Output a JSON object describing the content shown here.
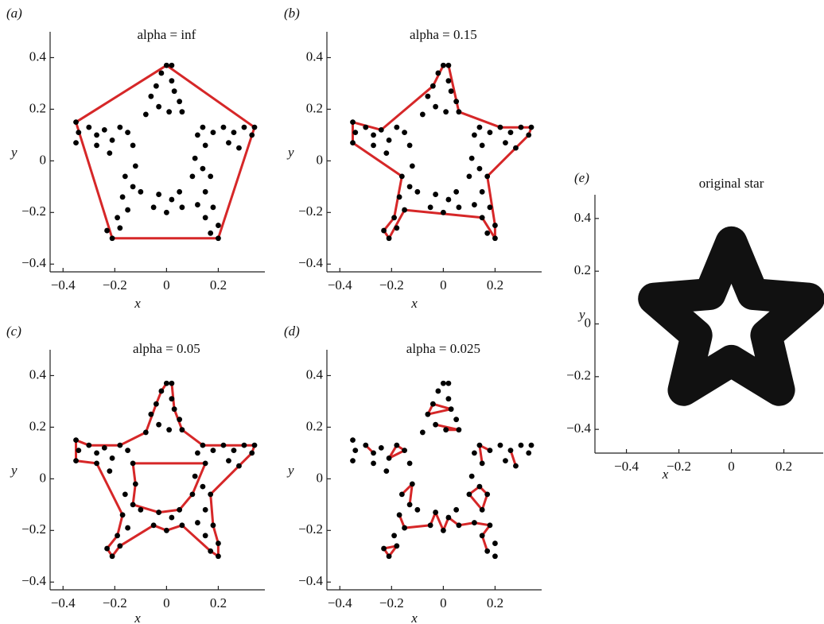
{
  "chart_data": [
    {
      "type": "scatter",
      "panel_label": "(a)",
      "title": "alpha = inf",
      "xlabel": "x",
      "ylabel": "y",
      "xlim": [
        -0.45,
        0.38
      ],
      "ylim": [
        -0.43,
        0.5
      ],
      "xticks": [
        {
          "value": -0.4,
          "label": "−0.4"
        },
        {
          "value": -0.2,
          "label": "−0.2"
        },
        0,
        0.2
      ],
      "yticks": [
        {
          "value": -0.4,
          "label": "−0.4"
        },
        {
          "value": -0.2,
          "label": "−0.2"
        },
        0,
        0.2,
        0.4
      ],
      "points": {
        "color": "#000000",
        "x": [
          0,
          0.02,
          -0.02,
          0.02,
          -0.04,
          0.03,
          -0.06,
          0.05,
          -0.03,
          0.06,
          -0.08,
          0.01,
          0.34,
          0.33,
          0.3,
          0.26,
          0.22,
          0.18,
          0.14,
          0.12,
          0.24,
          0.28,
          0.15,
          0.2,
          0.17,
          0.2,
          0.15,
          0.18,
          0.12,
          0.15,
          0.1,
          0.14,
          0.11,
          0.17,
          0.06,
          0,
          -0.05,
          0.02,
          -0.03,
          0.05,
          -0.21,
          -0.23,
          -0.18,
          -0.19,
          -0.15,
          -0.17,
          -0.13,
          -0.16,
          -0.12,
          -0.1,
          -0.35,
          -0.34,
          -0.35,
          -0.3,
          -0.27,
          -0.24,
          -0.21,
          -0.18,
          -0.15,
          -0.22,
          -0.27,
          -0.13
        ],
        "y": [
          0.37,
          0.37,
          0.34,
          0.31,
          0.29,
          0.27,
          0.25,
          0.23,
          0.21,
          0.19,
          0.18,
          0.19,
          0.13,
          0.1,
          0.13,
          0.11,
          0.13,
          0.11,
          0.13,
          0.1,
          0.07,
          0.05,
          0.06,
          -0.3,
          -0.28,
          -0.25,
          -0.22,
          -0.18,
          -0.17,
          -0.12,
          -0.06,
          -0.03,
          0.01,
          -0.06,
          -0.18,
          -0.2,
          -0.18,
          -0.15,
          -0.13,
          -0.12,
          -0.3,
          -0.27,
          -0.26,
          -0.22,
          -0.19,
          -0.14,
          -0.1,
          -0.06,
          -0.02,
          -0.12,
          0.15,
          0.11,
          0.07,
          0.13,
          0.1,
          0.12,
          0.08,
          0.13,
          0.11,
          0.03,
          0.06,
          0.06
        ]
      },
      "outline": {
        "color": "#d62728",
        "x": [
          0,
          0.34,
          0.2,
          -0.21,
          -0.35,
          0
        ],
        "y": [
          0.37,
          0.13,
          -0.3,
          -0.3,
          0.15,
          0.37
        ]
      }
    },
    {
      "type": "scatter",
      "panel_label": "(b)",
      "title": "alpha = 0.15",
      "xlabel": "x",
      "ylabel": "y",
      "xlim": [
        -0.45,
        0.38
      ],
      "ylim": [
        -0.43,
        0.5
      ],
      "xticks": [
        {
          "value": -0.4,
          "label": "−0.4"
        },
        {
          "value": -0.2,
          "label": "−0.2"
        },
        0,
        0.2
      ],
      "yticks": [
        {
          "value": -0.4,
          "label": "−0.4"
        },
        {
          "value": -0.2,
          "label": "−0.2"
        },
        0,
        0.2,
        0.4
      ],
      "points": {
        "color": "#000000",
        "x": [
          0,
          0.02,
          -0.02,
          0.02,
          -0.04,
          0.03,
          -0.06,
          0.05,
          -0.03,
          0.06,
          -0.08,
          0.01,
          0.34,
          0.33,
          0.3,
          0.26,
          0.22,
          0.18,
          0.14,
          0.12,
          0.24,
          0.28,
          0.15,
          0.2,
          0.17,
          0.2,
          0.15,
          0.18,
          0.12,
          0.15,
          0.1,
          0.14,
          0.11,
          0.17,
          0.06,
          0,
          -0.05,
          0.02,
          -0.03,
          0.05,
          -0.21,
          -0.23,
          -0.18,
          -0.19,
          -0.15,
          -0.17,
          -0.13,
          -0.16,
          -0.12,
          -0.1,
          -0.35,
          -0.34,
          -0.35,
          -0.3,
          -0.27,
          -0.24,
          -0.21,
          -0.18,
          -0.15,
          -0.22,
          -0.27,
          -0.13
        ],
        "y": [
          0.37,
          0.37,
          0.34,
          0.31,
          0.29,
          0.27,
          0.25,
          0.23,
          0.21,
          0.19,
          0.18,
          0.19,
          0.13,
          0.1,
          0.13,
          0.11,
          0.13,
          0.11,
          0.13,
          0.1,
          0.07,
          0.05,
          0.06,
          -0.3,
          -0.28,
          -0.25,
          -0.22,
          -0.18,
          -0.17,
          -0.12,
          -0.06,
          -0.03,
          0.01,
          -0.06,
          -0.18,
          -0.2,
          -0.18,
          -0.15,
          -0.13,
          -0.12,
          -0.3,
          -0.27,
          -0.26,
          -0.22,
          -0.19,
          -0.14,
          -0.1,
          -0.06,
          -0.02,
          -0.12,
          0.15,
          0.11,
          0.07,
          0.13,
          0.1,
          0.12,
          0.08,
          0.13,
          0.11,
          0.03,
          0.06,
          0.06
        ]
      },
      "outline": {
        "color": "#d62728",
        "x": [
          0,
          0.02,
          0.06,
          0.22,
          0.34,
          0.33,
          0.17,
          0.2,
          0.2,
          0.15,
          -0.15,
          -0.21,
          -0.23,
          -0.19,
          -0.16,
          -0.35,
          -0.35,
          -0.24,
          -0.04,
          0
        ],
        "y": [
          0.37,
          0.37,
          0.19,
          0.13,
          0.13,
          0.1,
          -0.06,
          -0.25,
          -0.3,
          -0.22,
          -0.19,
          -0.3,
          -0.27,
          -0.22,
          -0.06,
          0.07,
          0.15,
          0.12,
          0.29,
          0.37
        ]
      }
    },
    {
      "type": "scatter",
      "panel_label": "(c)",
      "title": "alpha = 0.05",
      "xlabel": "x",
      "ylabel": "y",
      "xlim": [
        -0.45,
        0.38
      ],
      "ylim": [
        -0.43,
        0.5
      ],
      "xticks": [
        {
          "value": -0.4,
          "label": "−0.4"
        },
        {
          "value": -0.2,
          "label": "−0.2"
        },
        0,
        0.2
      ],
      "yticks": [
        {
          "value": -0.4,
          "label": "−0.4"
        },
        {
          "value": -0.2,
          "label": "−0.2"
        },
        0,
        0.2,
        0.4
      ],
      "points": {
        "color": "#000000",
        "x": [
          0,
          0.02,
          -0.02,
          0.02,
          -0.04,
          0.03,
          -0.06,
          0.05,
          -0.03,
          0.06,
          -0.08,
          0.01,
          0.34,
          0.33,
          0.3,
          0.26,
          0.22,
          0.18,
          0.14,
          0.12,
          0.24,
          0.28,
          0.15,
          0.2,
          0.17,
          0.2,
          0.15,
          0.18,
          0.12,
          0.15,
          0.1,
          0.14,
          0.11,
          0.17,
          0.06,
          0,
          -0.05,
          0.02,
          -0.03,
          0.05,
          -0.21,
          -0.23,
          -0.18,
          -0.19,
          -0.15,
          -0.17,
          -0.13,
          -0.16,
          -0.12,
          -0.1,
          -0.35,
          -0.34,
          -0.35,
          -0.3,
          -0.27,
          -0.24,
          -0.21,
          -0.18,
          -0.15,
          -0.22,
          -0.27,
          -0.13
        ],
        "y": [
          0.37,
          0.37,
          0.34,
          0.31,
          0.29,
          0.27,
          0.25,
          0.23,
          0.21,
          0.19,
          0.18,
          0.19,
          0.13,
          0.1,
          0.13,
          0.11,
          0.13,
          0.11,
          0.13,
          0.1,
          0.07,
          0.05,
          0.06,
          -0.3,
          -0.28,
          -0.25,
          -0.22,
          -0.18,
          -0.17,
          -0.12,
          -0.06,
          -0.03,
          0.01,
          -0.06,
          -0.18,
          -0.2,
          -0.18,
          -0.15,
          -0.13,
          -0.12,
          -0.3,
          -0.27,
          -0.26,
          -0.22,
          -0.19,
          -0.14,
          -0.1,
          -0.06,
          -0.02,
          -0.12,
          0.15,
          0.11,
          0.07,
          0.13,
          0.1,
          0.12,
          0.08,
          0.13,
          0.11,
          0.03,
          0.06,
          0.06
        ]
      },
      "outline": {
        "color": "#d62728",
        "x": [
          0,
          0.02,
          0.03,
          0.06,
          0.14,
          0.22,
          0.3,
          0.34,
          0.33,
          0.28,
          0.17,
          0.18,
          0.2,
          0.2,
          0.17,
          0.06,
          0,
          -0.05,
          -0.18,
          -0.21,
          -0.23,
          -0.19,
          -0.17,
          -0.27,
          -0.35,
          -0.35,
          -0.3,
          -0.18,
          -0.08,
          -0.04,
          -0.02,
          0,
          null,
          -0.13,
          0.15,
          0.1,
          0.05,
          -0.03,
          -0.13,
          -0.12,
          -0.13
        ],
        "y": [
          0.37,
          0.37,
          0.27,
          0.19,
          0.13,
          0.13,
          0.13,
          0.13,
          0.1,
          0.05,
          -0.06,
          -0.18,
          -0.25,
          -0.3,
          -0.28,
          -0.18,
          -0.2,
          -0.18,
          -0.26,
          -0.3,
          -0.27,
          -0.22,
          -0.14,
          0.06,
          0.07,
          0.15,
          0.13,
          0.13,
          0.18,
          0.29,
          0.34,
          0.37,
          null,
          0.06,
          0.06,
          -0.06,
          -0.12,
          -0.13,
          -0.1,
          -0.02,
          0.06
        ]
      }
    },
    {
      "type": "scatter",
      "panel_label": "(d)",
      "title": "alpha = 0.025",
      "xlabel": "x",
      "ylabel": "y",
      "xlim": [
        -0.45,
        0.38
      ],
      "ylim": [
        -0.43,
        0.5
      ],
      "xticks": [
        {
          "value": -0.4,
          "label": "−0.4"
        },
        {
          "value": -0.2,
          "label": "−0.2"
        },
        0,
        0.2
      ],
      "yticks": [
        {
          "value": -0.4,
          "label": "−0.4"
        },
        {
          "value": -0.2,
          "label": "−0.2"
        },
        0,
        0.2,
        0.4
      ],
      "points": {
        "color": "#000000",
        "x": [
          0,
          0.02,
          -0.02,
          0.02,
          -0.04,
          0.03,
          -0.06,
          0.05,
          -0.03,
          0.06,
          -0.08,
          0.01,
          0.34,
          0.33,
          0.3,
          0.26,
          0.22,
          0.18,
          0.14,
          0.12,
          0.24,
          0.28,
          0.15,
          0.2,
          0.17,
          0.2,
          0.15,
          0.18,
          0.12,
          0.15,
          0.1,
          0.14,
          0.11,
          0.17,
          0.06,
          0,
          -0.05,
          0.02,
          -0.03,
          0.05,
          -0.21,
          -0.23,
          -0.18,
          -0.19,
          -0.15,
          -0.17,
          -0.13,
          -0.16,
          -0.12,
          -0.1,
          -0.35,
          -0.34,
          -0.35,
          -0.3,
          -0.27,
          -0.24,
          -0.21,
          -0.18,
          -0.15,
          -0.22,
          -0.27,
          -0.13
        ],
        "y": [
          0.37,
          0.37,
          0.34,
          0.31,
          0.29,
          0.27,
          0.25,
          0.23,
          0.21,
          0.19,
          0.18,
          0.19,
          0.13,
          0.1,
          0.13,
          0.11,
          0.13,
          0.11,
          0.13,
          0.1,
          0.07,
          0.05,
          0.06,
          -0.3,
          -0.28,
          -0.25,
          -0.22,
          -0.18,
          -0.17,
          -0.12,
          -0.06,
          -0.03,
          0.01,
          -0.06,
          -0.18,
          -0.2,
          -0.18,
          -0.15,
          -0.13,
          -0.12,
          -0.3,
          -0.27,
          -0.26,
          -0.22,
          -0.19,
          -0.14,
          -0.1,
          -0.06,
          -0.02,
          -0.12,
          0.15,
          0.11,
          0.07,
          0.13,
          0.1,
          0.12,
          0.08,
          0.13,
          0.11,
          0.03,
          0.06,
          0.06
        ]
      },
      "outline": {
        "color": "#d62728",
        "x": [
          -0.04,
          0.03,
          -0.06,
          -0.04,
          null,
          -0.03,
          0.06,
          0.01,
          null,
          -0.3,
          -0.27,
          null,
          -0.21,
          -0.18,
          -0.15,
          -0.21,
          null,
          0.18,
          0.14,
          0.15,
          null,
          0.26,
          0.28,
          null,
          0.1,
          0.14,
          0.17,
          0.15,
          0.1,
          null,
          -0.16,
          -0.12,
          -0.13,
          null,
          -0.17,
          -0.15,
          -0.05,
          -0.03,
          0,
          0.02,
          0.06,
          0.12,
          0.18,
          0.15,
          0.17,
          null,
          -0.23,
          -0.21,
          -0.18,
          -0.23
        ],
        "y": [
          0.29,
          0.27,
          0.25,
          0.29,
          null,
          0.21,
          0.19,
          0.19,
          null,
          0.13,
          0.1,
          null,
          0.08,
          0.13,
          0.11,
          0.08,
          null,
          0.11,
          0.13,
          0.06,
          null,
          0.11,
          0.05,
          null,
          -0.06,
          -0.03,
          -0.06,
          -0.12,
          -0.06,
          null,
          -0.06,
          -0.02,
          -0.1,
          null,
          -0.14,
          -0.19,
          -0.18,
          -0.13,
          -0.2,
          -0.15,
          -0.18,
          -0.17,
          -0.18,
          -0.22,
          -0.28,
          null,
          -0.27,
          -0.3,
          -0.26,
          -0.27
        ]
      }
    },
    {
      "type": "area",
      "panel_label": "(e)",
      "title": "original star",
      "xlabel": "x",
      "ylabel": "y",
      "xlim": [
        -0.52,
        0.35
      ],
      "ylim": [
        -0.49,
        0.49
      ],
      "xticks": [
        {
          "value": -0.4,
          "label": "−0.4"
        },
        {
          "value": -0.2,
          "label": "−0.2"
        },
        0,
        0.2
      ],
      "yticks": [
        {
          "value": -0.4,
          "label": "−0.4"
        },
        {
          "value": -0.2,
          "label": "−0.2"
        },
        0,
        0.2,
        0.4
      ],
      "outline": {
        "color": "#111111",
        "x": [
          0,
          0.082,
          0.295,
          0.133,
          0.182,
          0,
          -0.182,
          -0.133,
          -0.295,
          -0.082,
          0
        ],
        "y": [
          0.31,
          0.113,
          0.096,
          -0.043,
          -0.251,
          -0.14,
          -0.251,
          -0.043,
          0.096,
          0.113,
          0.31
        ]
      }
    }
  ]
}
